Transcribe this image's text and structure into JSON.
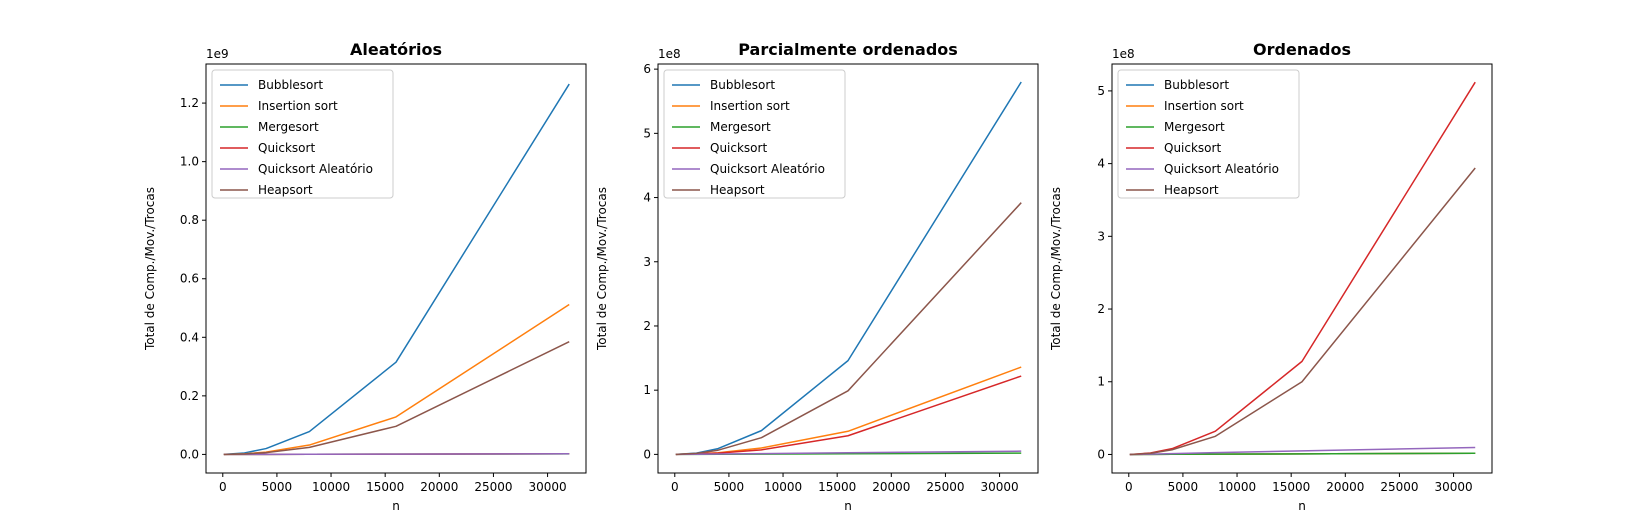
{
  "colors": {
    "Bubblesort": "#1f77b4",
    "Insertion sort": "#ff7f0e",
    "Mergesort": "#2ca02c",
    "Quicksort": "#d62728",
    "Quicksort Aleatório": "#9467bd",
    "Heapsort": "#8c564b"
  },
  "chart_data": [
    {
      "type": "line",
      "title": "Aleatórios",
      "xlabel": "n",
      "ylabel": "Total de Comp./Mov./Trocas",
      "multiplier": "1e9",
      "scale": 1000000000,
      "xlim": [
        -1550,
        33550
      ],
      "ylim": [
        -63500000,
        1333500000
      ],
      "xticks": [
        0,
        5000,
        10000,
        15000,
        20000,
        25000,
        30000
      ],
      "yticks": [
        0,
        200000000,
        400000000,
        600000000,
        800000000,
        1000000000,
        1200000000
      ],
      "ytick_labels": [
        "0.0",
        "0.2",
        "0.4",
        "0.6",
        "0.8",
        "1.0",
        "1.2"
      ],
      "legend_position": "upper-left",
      "x": [
        100,
        2000,
        4000,
        8000,
        16000,
        32000
      ],
      "series": [
        {
          "name": "Bubblesort",
          "values": [
            0,
            5000000,
            20000000,
            78000000,
            315000000,
            1265000000
          ]
        },
        {
          "name": "Insertion sort",
          "values": [
            0,
            2000000,
            8000000,
            32000000,
            128000000,
            512000000
          ]
        },
        {
          "name": "Mergesort",
          "values": [
            0,
            100000,
            200000,
            400000,
            900000,
            1900000
          ]
        },
        {
          "name": "Quicksort",
          "values": [
            0,
            100000,
            200000,
            500000,
            1000000,
            2200000
          ]
        },
        {
          "name": "Quicksort Aleatório",
          "values": [
            0,
            100000,
            200000,
            500000,
            1000000,
            2200000
          ]
        },
        {
          "name": "Heapsort",
          "values": [
            0,
            1500000,
            6000000,
            24000000,
            96000000,
            385000000
          ]
        }
      ]
    },
    {
      "type": "line",
      "title": "Parcialmente ordenados",
      "xlabel": "n",
      "ylabel": "Total de Comp./Mov./Trocas",
      "multiplier": "1e8",
      "scale": 100000000,
      "xlim": [
        -1550,
        33550
      ],
      "ylim": [
        -29000000,
        608000000
      ],
      "xticks": [
        0,
        5000,
        10000,
        15000,
        20000,
        25000,
        30000
      ],
      "yticks": [
        0,
        100000000,
        200000000,
        300000000,
        400000000,
        500000000,
        600000000
      ],
      "ytick_labels": [
        "0",
        "1",
        "2",
        "3",
        "4",
        "5",
        "6"
      ],
      "legend_position": "upper-left",
      "x": [
        100,
        2000,
        4000,
        8000,
        16000,
        32000
      ],
      "series": [
        {
          "name": "Bubblesort",
          "values": [
            0,
            2000000,
            9000000,
            37000000,
            146000000,
            580000000
          ]
        },
        {
          "name": "Insertion sort",
          "values": [
            0,
            1000000,
            2500000,
            10000000,
            36000000,
            136000000
          ]
        },
        {
          "name": "Mergesort",
          "values": [
            0,
            100000,
            200000,
            400000,
            900000,
            2000000
          ]
        },
        {
          "name": "Quicksort",
          "values": [
            0,
            500000,
            2000000,
            7000000,
            29000000,
            122000000
          ]
        },
        {
          "name": "Quicksort Aleatório",
          "values": [
            0,
            200000,
            500000,
            1200000,
            2500000,
            5000000
          ]
        },
        {
          "name": "Heapsort",
          "values": [
            0,
            1500000,
            6500000,
            26000000,
            99000000,
            392000000
          ]
        }
      ]
    },
    {
      "type": "line",
      "title": "Ordenados",
      "xlabel": "n",
      "ylabel": "Total de Comp./Mov./Trocas",
      "multiplier": "1e8",
      "scale": 100000000,
      "xlim": [
        -1550,
        33550
      ],
      "ylim": [
        -25500000,
        537000000
      ],
      "xticks": [
        0,
        5000,
        10000,
        15000,
        20000,
        25000,
        30000
      ],
      "yticks": [
        0,
        100000000,
        200000000,
        300000000,
        400000000,
        500000000
      ],
      "ytick_labels": [
        "0",
        "1",
        "2",
        "3",
        "4",
        "5"
      ],
      "legend_position": "upper-left",
      "x": [
        100,
        2000,
        4000,
        8000,
        16000,
        32000
      ],
      "series": [
        {
          "name": "Bubblesort",
          "values": [
            0,
            100000,
            200000,
            400000,
            800000,
            1600000
          ]
        },
        {
          "name": "Insertion sort",
          "values": [
            0,
            100000,
            200000,
            400000,
            800000,
            1600000
          ]
        },
        {
          "name": "Mergesort",
          "values": [
            0,
            100000,
            200000,
            400000,
            800000,
            1600000
          ]
        },
        {
          "name": "Quicksort",
          "values": [
            0,
            2000000,
            8000000,
            32000000,
            128000000,
            512000000
          ]
        },
        {
          "name": "Quicksort Aleatório",
          "values": [
            0,
            500000,
            1200000,
            2500000,
            5000000,
            9500000
          ]
        },
        {
          "name": "Heapsort",
          "values": [
            0,
            1500000,
            6500000,
            25000000,
            100000000,
            394000000
          ]
        }
      ]
    }
  ]
}
